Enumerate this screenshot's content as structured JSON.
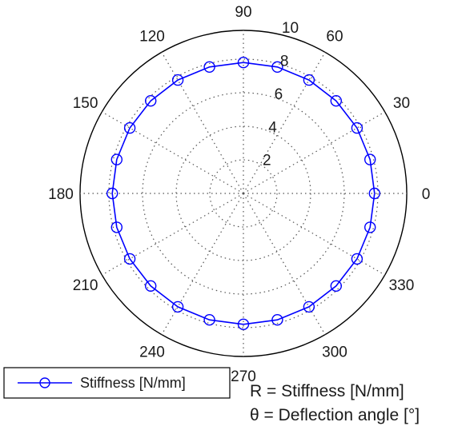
{
  "chart_data": {
    "type": "polar-line",
    "r_ticks": [
      "2",
      "4",
      "6",
      "8",
      "10"
    ],
    "r_max": 10,
    "theta_ticks": [
      "0",
      "30",
      "60",
      "90",
      "120",
      "150",
      "180",
      "210",
      "240",
      "270",
      "300",
      "330"
    ],
    "grid": true,
    "legend_placement": "bottom-left",
    "series": [
      {
        "name": "Stiffness [N/mm]",
        "color": "#0000ff",
        "marker": "circle",
        "theta_deg": [
          0,
          15,
          30,
          45,
          60,
          75,
          90,
          105,
          120,
          135,
          150,
          165,
          180,
          195,
          210,
          225,
          240,
          255,
          270,
          285,
          300,
          315,
          330,
          345
        ],
        "r": [
          7.8,
          7.8,
          7.8,
          7.8,
          7.8,
          7.8,
          7.8,
          7.8,
          7.8,
          7.8,
          7.8,
          7.8,
          7.8,
          7.8,
          7.8,
          7.8,
          7.8,
          7.8,
          7.8,
          7.8,
          7.8,
          7.8,
          7.8,
          7.8
        ]
      }
    ]
  },
  "notes": {
    "r_label": "R = Stiffness [N/mm]",
    "theta_label": "θ = Deflection angle [°]"
  }
}
